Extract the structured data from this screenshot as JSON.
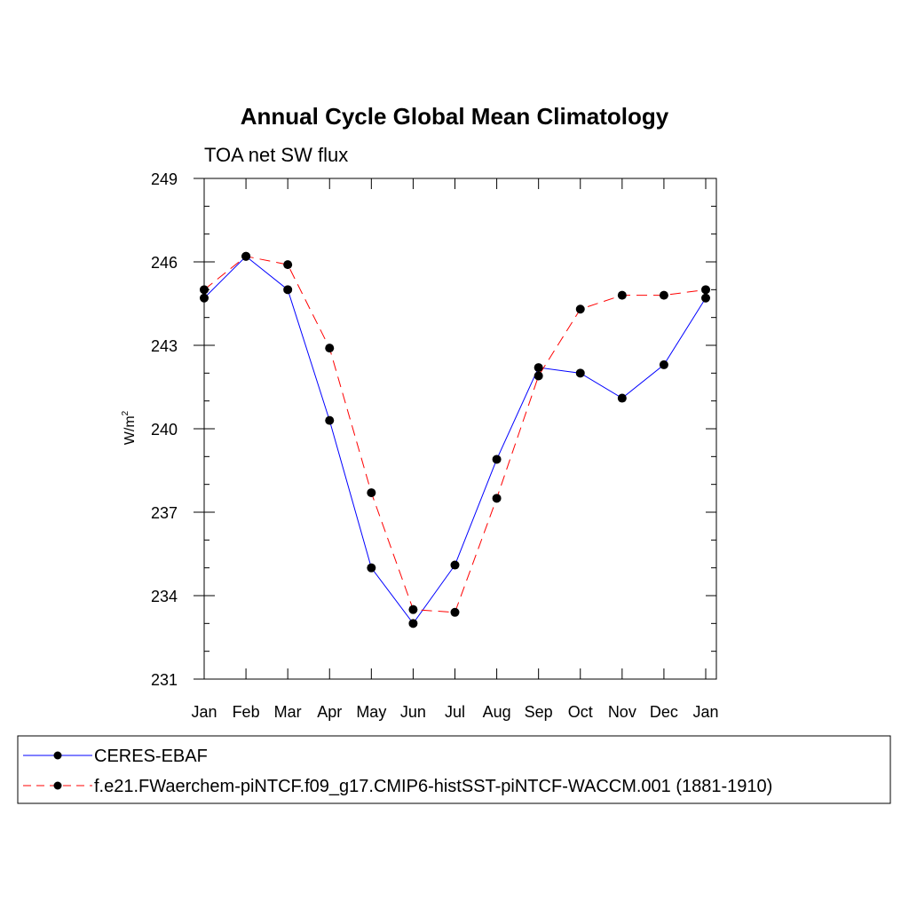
{
  "chart_data": {
    "type": "line",
    "title": "Annual Cycle Global Mean Climatology",
    "subtitle": "TOA net SW flux",
    "ylabel": "W/m",
    "ylabel_superscript": "2",
    "categories": [
      "Jan",
      "Feb",
      "Mar",
      "Apr",
      "May",
      "Jun",
      "Jul",
      "Aug",
      "Sep",
      "Oct",
      "Nov",
      "Dec",
      "Jan"
    ],
    "ylim": [
      231,
      249
    ],
    "yticks": [
      "231",
      "234",
      "237",
      "240",
      "243",
      "246",
      "249"
    ],
    "series": [
      {
        "name": "CERES-EBAF",
        "color": "#0000ff",
        "dash": "solid",
        "values": [
          244.7,
          246.2,
          245.0,
          240.3,
          235.0,
          233.0,
          235.1,
          238.9,
          242.2,
          242.0,
          241.1,
          242.3,
          244.7
        ]
      },
      {
        "name": "f.e21.FWaerchem-piNTCF.f09_g17.CMIP6-histSST-piNTCF-WACCM.001 (1881-1910)",
        "color": "#ff0000",
        "dash": "dashed",
        "values": [
          245.0,
          246.2,
          245.9,
          242.9,
          237.7,
          233.5,
          233.4,
          237.5,
          241.9,
          244.3,
          244.8,
          244.8,
          245.0
        ]
      }
    ],
    "legend_position": "bottom",
    "marker_color": "#000000"
  }
}
